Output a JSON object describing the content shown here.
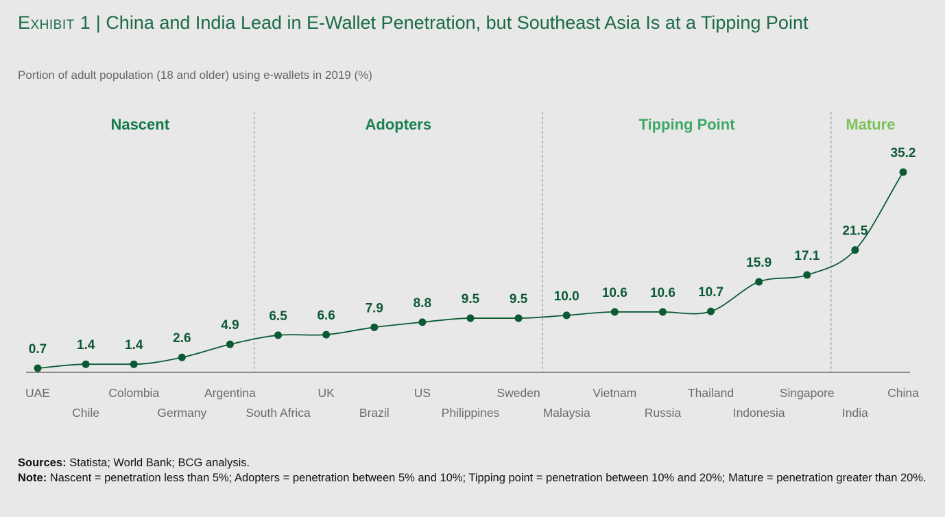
{
  "header": {
    "exhibit": "Exhibit 1",
    "separator": "|",
    "title": "China and India Lead in E-Wallet Penetration, but Southeast Asia Is at a Tipping Point",
    "subtitle": "Portion of adult population (18 and older) using e-wallets in 2019 (%)"
  },
  "colors": {
    "line": "#0b5a34",
    "nascent": "#14784a",
    "adopters": "#1b7f50",
    "tipping": "#3fa865",
    "mature": "#7dc15a",
    "axis_text": "#6b6b6b"
  },
  "chart_data": {
    "type": "line",
    "categories": [
      "UAE",
      "Chile",
      "Colombia",
      "Germany",
      "Argentina",
      "South Africa",
      "UK",
      "Brazil",
      "US",
      "Philippines",
      "Sweden",
      "Malaysia",
      "Vietnam",
      "Russia",
      "Thailand",
      "Indonesia",
      "Singapore",
      "India",
      "China"
    ],
    "values": [
      0.7,
      1.4,
      1.4,
      2.6,
      4.9,
      6.5,
      6.6,
      7.9,
      8.8,
      9.5,
      9.5,
      10.0,
      10.6,
      10.6,
      10.7,
      15.9,
      17.1,
      21.5,
      35.2
    ],
    "value_labels": [
      "0.7",
      "1.4",
      "1.4",
      "2.6",
      "4.9",
      "6.5",
      "6.6",
      "7.9",
      "8.8",
      "9.5",
      "9.5",
      "10.0",
      "10.6",
      "10.6",
      "10.7",
      "15.9",
      "17.1",
      "21.5",
      "35.2"
    ],
    "ylim": [
      0,
      36
    ],
    "segments": [
      {
        "label": "Nascent",
        "from": 0,
        "to": 4,
        "color": "#14784a"
      },
      {
        "label": "Adopters",
        "from": 5,
        "to": 10,
        "color": "#1b7f50"
      },
      {
        "label": "Tipping Point",
        "from": 11,
        "to": 16,
        "color": "#3fa865"
      },
      {
        "label": "Mature",
        "from": 17,
        "to": 18,
        "color": "#7dc15a"
      }
    ],
    "grid": false,
    "xlabel": "",
    "ylabel": ""
  },
  "footer": {
    "sources_label": "Sources:",
    "sources_text": "Statista; World Bank; BCG analysis.",
    "note_label": "Note:",
    "note_text": "Nascent = penetration less than 5%; Adopters = penetration between 5% and 10%; Tipping point = penetration between 10% and 20%; Mature = penetration greater than 20%."
  }
}
